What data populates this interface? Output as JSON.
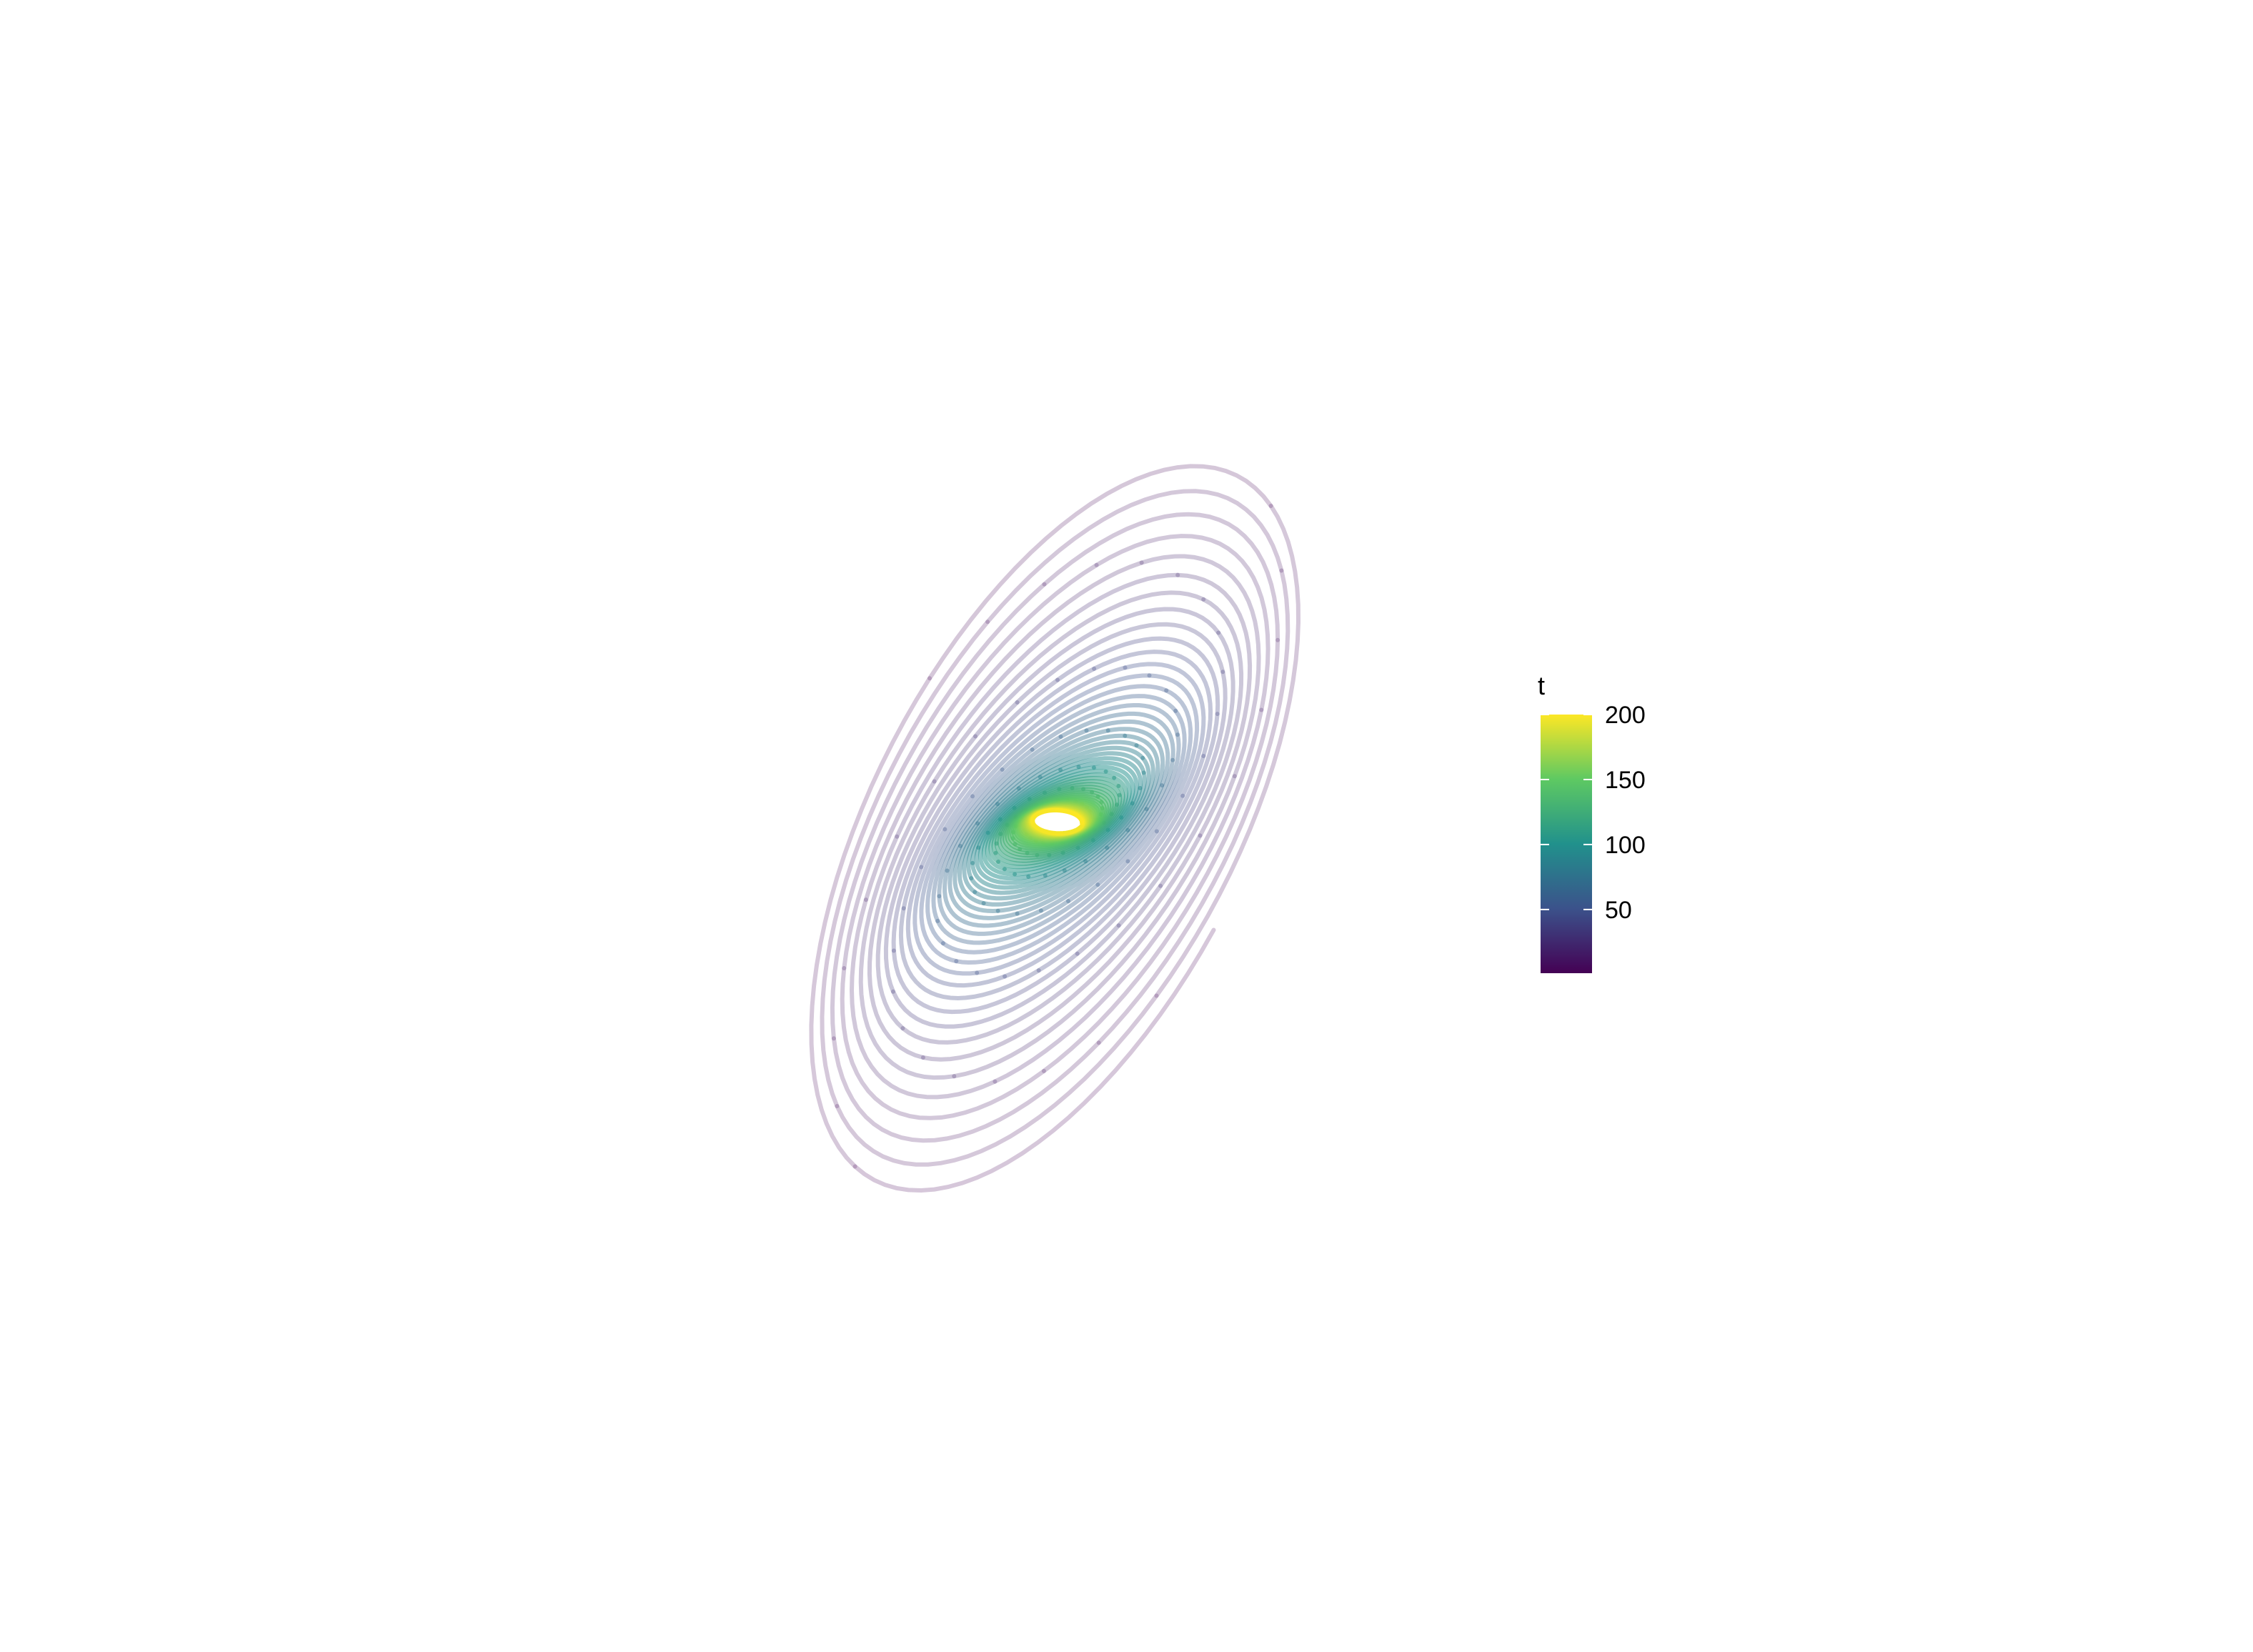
{
  "chart_data": {
    "type": "line",
    "description_kind": "parametric spiral (harmonograph-like), colored by t",
    "color_variable": "t",
    "t_range": [
      1,
      200
    ],
    "line_alpha_fading": "older (low t) strokes are translucent, recent (high t) strokes opaque",
    "color_scale": "viridis",
    "colors": {
      "viridis_stops": [
        "#440154",
        "#3b528b",
        "#21918c",
        "#5ec962",
        "#fde725"
      ]
    },
    "legend": {
      "title": "t",
      "ticks": [
        50,
        100,
        150,
        200
      ],
      "tick_labels": [
        "50",
        "100",
        "150",
        "200"
      ],
      "placement": "right"
    },
    "axes": {
      "visible": false,
      "grid": false
    }
  }
}
